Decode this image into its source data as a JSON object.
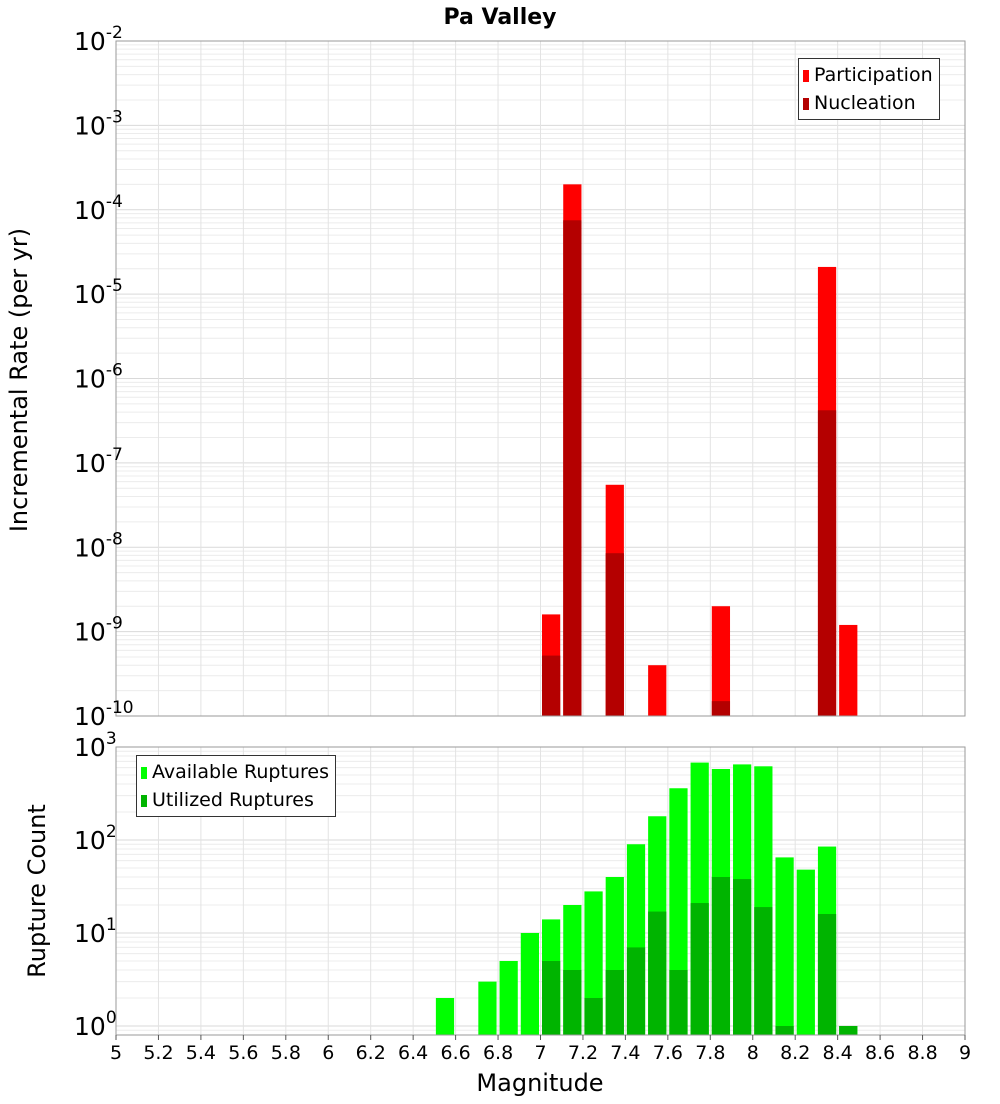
{
  "chart_data": [
    {
      "type": "bar",
      "title": "Pa Valley",
      "ylabel": "Incremental Rate (per yr)",
      "y_scale": "log",
      "ylim": [
        1e-10,
        0.01
      ],
      "xlim": [
        5,
        9
      ],
      "bar_width": 0.1,
      "y_ticks": [
        {
          "base": "10",
          "exp": "-10"
        },
        {
          "base": "10",
          "exp": "-9"
        },
        {
          "base": "10",
          "exp": "-8"
        },
        {
          "base": "10",
          "exp": "-7"
        },
        {
          "base": "10",
          "exp": "-6"
        },
        {
          "base": "10",
          "exp": "-5"
        },
        {
          "base": "10",
          "exp": "-4"
        },
        {
          "base": "10",
          "exp": "-3"
        },
        {
          "base": "10",
          "exp": "-2"
        }
      ],
      "legend_position": "top-right",
      "grid": true,
      "series": [
        {
          "name": "Participation",
          "color": "#ff0000",
          "x": [
            7.05,
            7.15,
            7.35,
            7.55,
            7.85,
            8.35,
            8.45
          ],
          "values": [
            1.6e-09,
            0.0002,
            5.5e-08,
            4e-10,
            2e-09,
            2.1e-05,
            1.2e-09
          ]
        },
        {
          "name": "Nucleation",
          "color": "#b40000",
          "x": [
            7.05,
            7.15,
            7.35,
            7.85,
            8.35
          ],
          "values": [
            5.2e-10,
            7.5e-05,
            8.5e-09,
            1.5e-10,
            4.2e-07
          ]
        }
      ]
    },
    {
      "type": "bar",
      "xlabel": "Magnitude",
      "ylabel": "Rupture Count",
      "y_scale": "log",
      "ylim": [
        0.8,
        1000
      ],
      "xlim": [
        5,
        9
      ],
      "bar_width": 0.1,
      "x_ticks": [
        "5",
        "5.2",
        "5.4",
        "5.6",
        "5.8",
        "6",
        "6.2",
        "6.4",
        "6.6",
        "6.8",
        "7",
        "7.2",
        "7.4",
        "7.6",
        "7.8",
        "8",
        "8.2",
        "8.4",
        "8.6",
        "8.8",
        "9"
      ],
      "y_ticks": [
        {
          "base": "10",
          "exp": "0"
        },
        {
          "base": "10",
          "exp": "1"
        },
        {
          "base": "10",
          "exp": "2"
        },
        {
          "base": "10",
          "exp": "3"
        }
      ],
      "legend_position": "top-left",
      "grid": true,
      "series": [
        {
          "name": "Available Ruptures",
          "color": "#00ff00",
          "x": [
            6.55,
            6.75,
            6.85,
            6.95,
            7.05,
            7.15,
            7.25,
            7.35,
            7.45,
            7.55,
            7.65,
            7.75,
            7.85,
            7.95,
            8.05,
            8.15,
            8.25,
            8.35,
            8.45
          ],
          "values": [
            2,
            3,
            5,
            10,
            14,
            20,
            28,
            40,
            90,
            180,
            360,
            680,
            580,
            650,
            620,
            65,
            48,
            85,
            1
          ]
        },
        {
          "name": "Utilized Ruptures",
          "color": "#00b400",
          "x": [
            7.05,
            7.15,
            7.25,
            7.35,
            7.45,
            7.55,
            7.65,
            7.75,
            7.85,
            7.95,
            8.05,
            8.15,
            8.35,
            8.45
          ],
          "values": [
            5,
            4,
            2,
            4,
            7,
            17,
            4,
            21,
            40,
            38,
            19,
            1,
            16,
            1
          ]
        }
      ]
    }
  ]
}
